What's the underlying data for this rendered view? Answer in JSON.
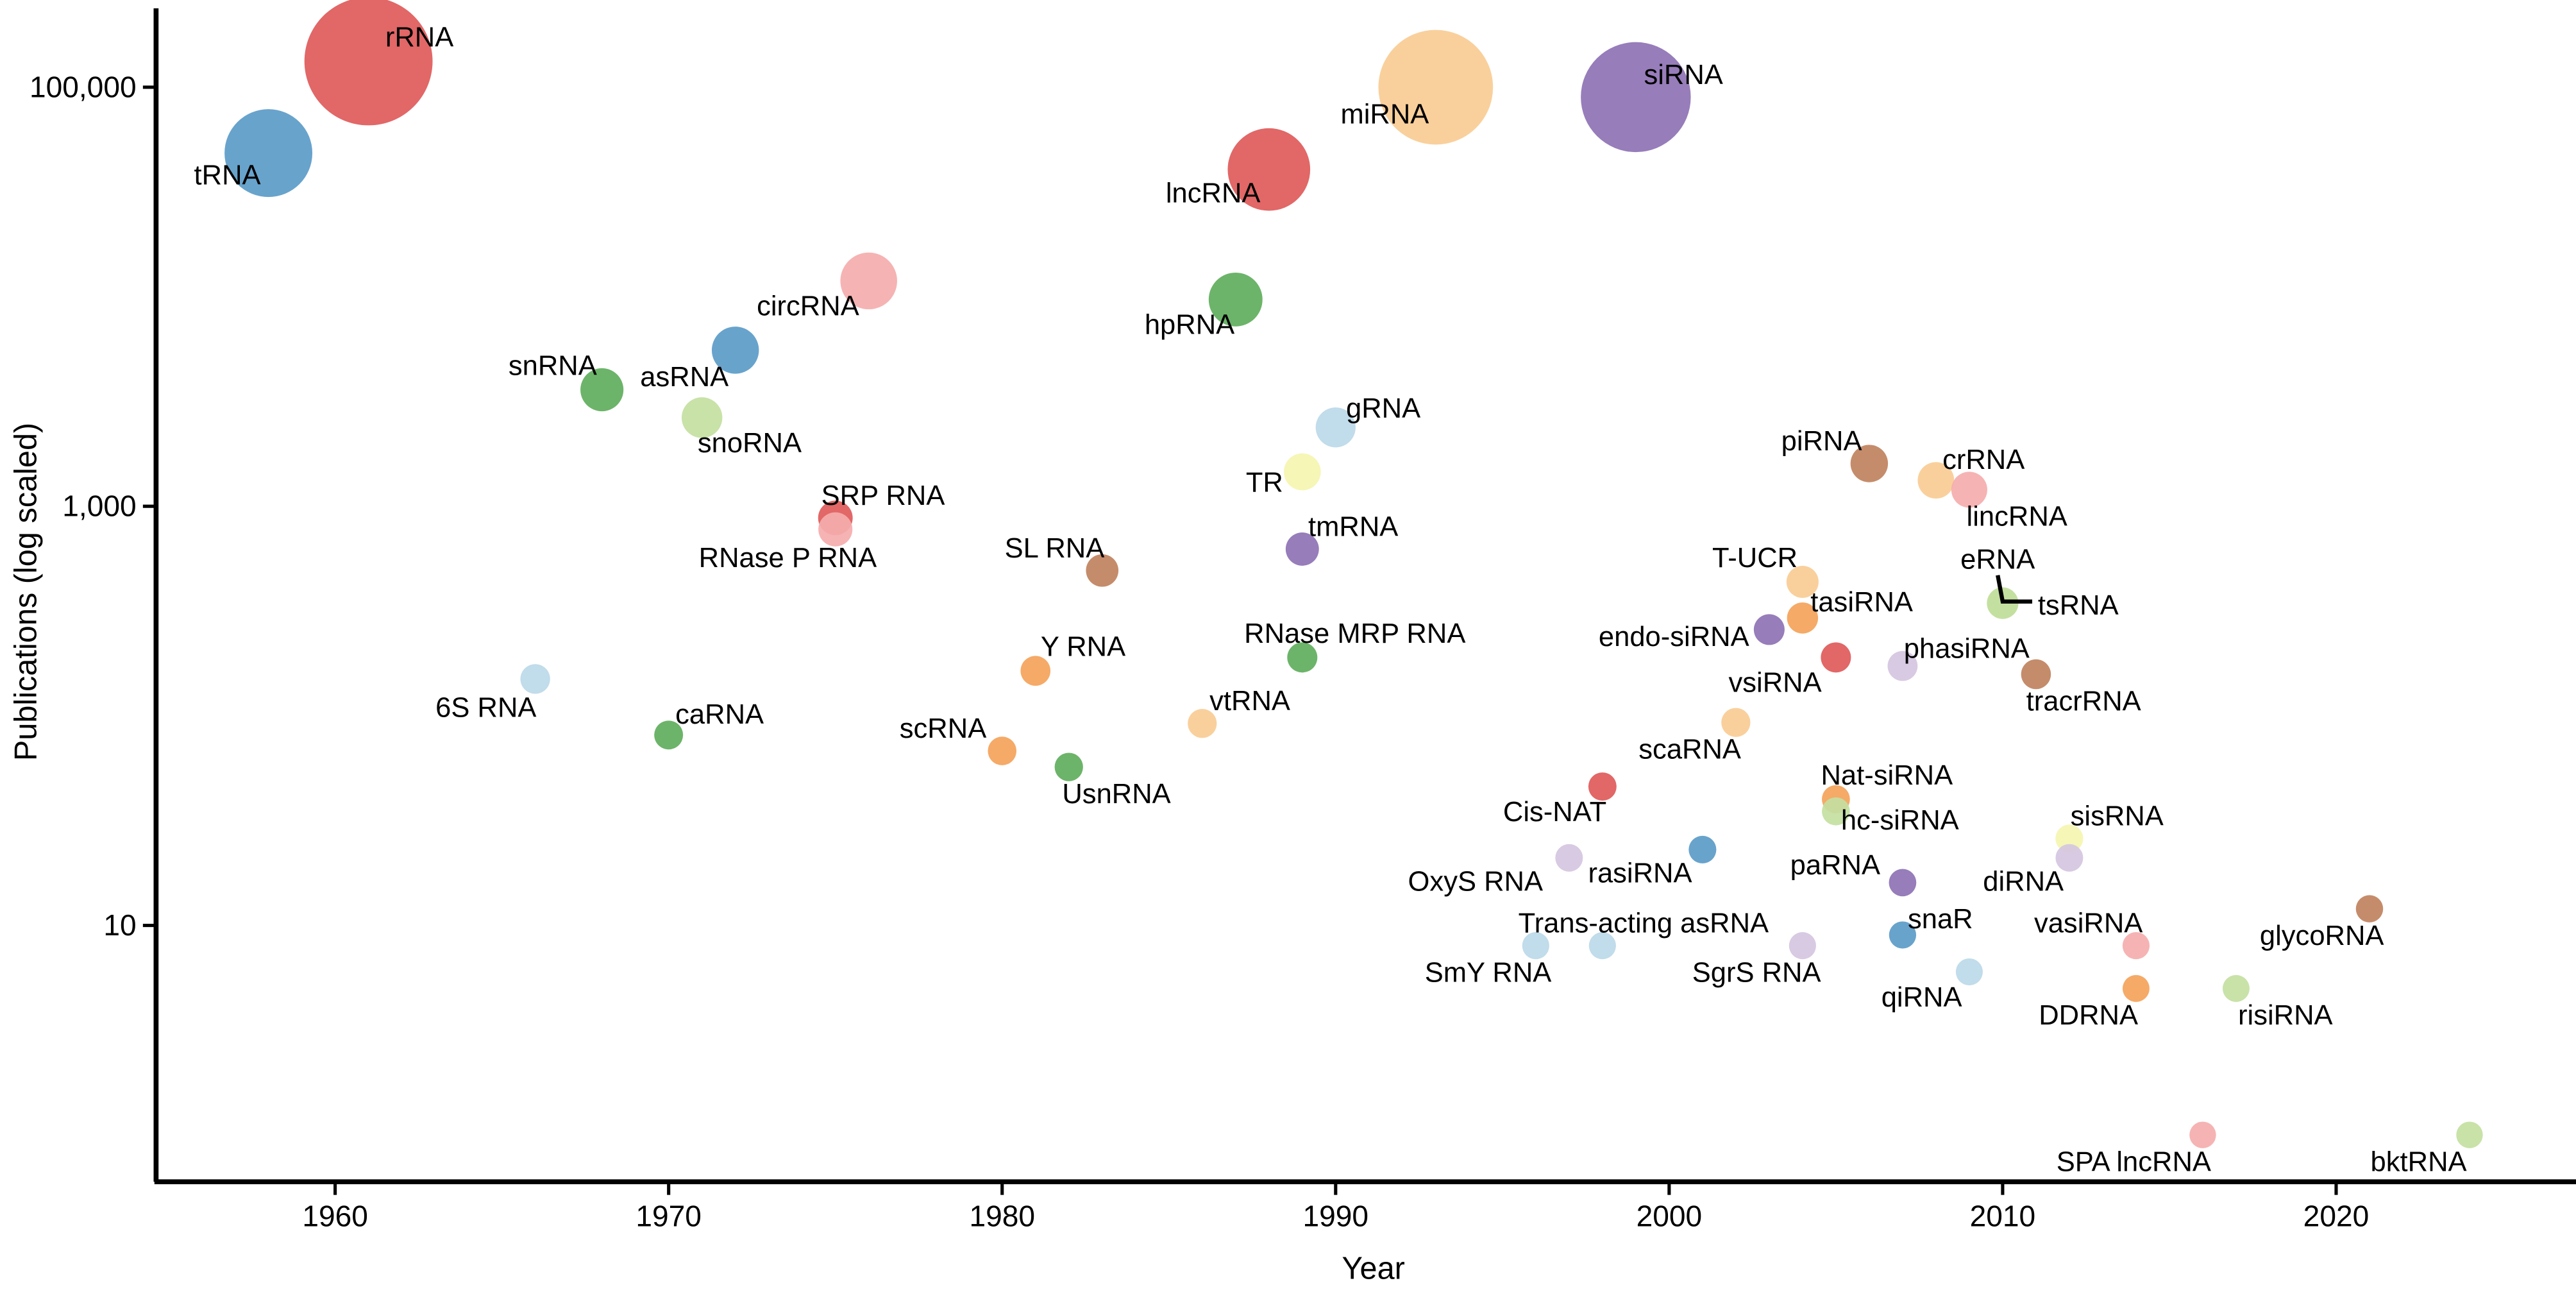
{
  "chart_data": {
    "type": "scatter",
    "title": "",
    "xlabel": "Year",
    "ylabel": "Publications (log scaled)",
    "xlim": [
      1954.6,
      2027.6
    ],
    "ylim": [
      0.6,
      200000
    ],
    "yscale": "log",
    "grid": false,
    "xticks": [
      1960,
      1970,
      1980,
      1990,
      2000,
      2010,
      2020
    ],
    "xtick_labels": [
      "1960",
      "1970",
      "1980",
      "1990",
      "2000",
      "2010",
      "2020"
    ],
    "yticks": [
      10,
      1000,
      100000
    ],
    "ytick_labels": [
      "10",
      "1,000",
      "100,000"
    ],
    "size_encoding": "publications",
    "points": [
      {
        "name": "rRNA",
        "year": 1961,
        "publications": 133000,
        "color": "#e05a5a"
      },
      {
        "name": "miRNA",
        "year": 1993,
        "publications": 100000,
        "color": "#f8cc94"
      },
      {
        "name": "siRNA",
        "year": 1999,
        "publications": 89700,
        "color": "#8e72b4"
      },
      {
        "name": "tRNA",
        "year": 1958,
        "publications": 48500,
        "color": "#5b9bc8"
      },
      {
        "name": "lncRNA",
        "year": 1988,
        "publications": 40500,
        "color": "#e05a5a"
      },
      {
        "name": "circRNA",
        "year": 1976,
        "publications": 11900,
        "color": "#f5adad"
      },
      {
        "name": "hpRNA",
        "year": 1987,
        "publications": 9700,
        "color": "#5fae5c"
      },
      {
        "name": "asRNA",
        "year": 1972,
        "publications": 5560,
        "color": "#5b9bc8"
      },
      {
        "name": "snRNA",
        "year": 1968,
        "publications": 3600,
        "color": "#5fae5c"
      },
      {
        "name": "snoRNA",
        "year": 1971,
        "publications": 2650,
        "color": "#c3e0a1"
      },
      {
        "name": "gRNA",
        "year": 1990,
        "publications": 2380,
        "color": "#bcd9e8"
      },
      {
        "name": "piRNA",
        "year": 2006,
        "publications": 1600,
        "color": "#c0825e"
      },
      {
        "name": "TR",
        "year": 1989,
        "publications": 1460,
        "color": "#f5f5b0"
      },
      {
        "name": "crRNA",
        "year": 2008,
        "publications": 1330,
        "color": "#f8cc94"
      },
      {
        "name": "lincRNA",
        "year": 2009,
        "publications": 1200,
        "color": "#f5adad"
      },
      {
        "name": "SRP RNA",
        "year": 1975,
        "publications": 880,
        "color": "#e05a5a"
      },
      {
        "name": "RNase P RNA",
        "year": 1975,
        "publications": 776,
        "color": "#f5adad"
      },
      {
        "name": "tmRNA",
        "year": 1989,
        "publications": 625,
        "color": "#8e72b4"
      },
      {
        "name": "SL RNA",
        "year": 1983,
        "publications": 494,
        "color": "#c0825e"
      },
      {
        "name": "T-UCR",
        "year": 2004,
        "publications": 436,
        "color": "#f8cc94"
      },
      {
        "name": "eRNA",
        "year": 2010,
        "publications": 345,
        "color": "#c3e0a1"
      },
      {
        "name": "tsRNA",
        "year": 2010,
        "publications": 345,
        "color": "#c3e0a1"
      },
      {
        "name": "tasiRNA",
        "year": 2004,
        "publications": 293,
        "color": "#f4a35a"
      },
      {
        "name": "endo-siRNA",
        "year": 2003,
        "publications": 258,
        "color": "#8e72b4"
      },
      {
        "name": "vsiRNA",
        "year": 2005,
        "publications": 190,
        "color": "#e05a5a"
      },
      {
        "name": "RNase MRP RNA",
        "year": 1989,
        "publications": 190,
        "color": "#5fae5c"
      },
      {
        "name": "phasiRNA",
        "year": 2007,
        "publications": 173,
        "color": "#d5c5e0"
      },
      {
        "name": "Y RNA",
        "year": 1981,
        "publications": 164,
        "color": "#f4a35a"
      },
      {
        "name": "tracrRNA",
        "year": 2011,
        "publications": 158,
        "color": "#c0825e"
      },
      {
        "name": "6S RNA",
        "year": 1966,
        "publications": 150,
        "color": "#bcd9e8"
      },
      {
        "name": "scaRNA",
        "year": 2002,
        "publications": 93,
        "color": "#f8cc94"
      },
      {
        "name": "vtRNA",
        "year": 1986,
        "publications": 92,
        "color": "#f8cc94"
      },
      {
        "name": "caRNA",
        "year": 1970,
        "publications": 81,
        "color": "#5fae5c"
      },
      {
        "name": "scRNA",
        "year": 1980,
        "publications": 68,
        "color": "#f4a35a"
      },
      {
        "name": "UsnRNA",
        "year": 1982,
        "publications": 57,
        "color": "#5fae5c"
      },
      {
        "name": "Cis-NAT",
        "year": 1998,
        "publications": 46,
        "color": "#e05a5a"
      },
      {
        "name": "Nat-siRNA",
        "year": 2005,
        "publications": 40,
        "color": "#f4a35a"
      },
      {
        "name": "hc-siRNA",
        "year": 2005,
        "publications": 35,
        "color": "#c3e0a1"
      },
      {
        "name": "sisRNA",
        "year": 2012,
        "publications": 26,
        "color": "#f5f5b0"
      },
      {
        "name": "rasiRNA",
        "year": 2001,
        "publications": 23,
        "color": "#5b9bc8"
      },
      {
        "name": "diRNA",
        "year": 2012,
        "publications": 21,
        "color": "#d5c5e0"
      },
      {
        "name": "OxyS RNA",
        "year": 1997,
        "publications": 21,
        "color": "#d5c5e0"
      },
      {
        "name": "paRNA",
        "year": 2007,
        "publications": 16,
        "color": "#8e72b4"
      },
      {
        "name": "glycoRNA",
        "year": 2021,
        "publications": 12,
        "color": "#c0825e"
      },
      {
        "name": "snaR",
        "year": 2007,
        "publications": 9,
        "color": "#5b9bc8"
      },
      {
        "name": "SmY RNA",
        "year": 1996,
        "publications": 8,
        "color": "#bcd9e8"
      },
      {
        "name": "Trans-acting asRNA",
        "year": 1998,
        "publications": 8,
        "color": "#bcd9e8"
      },
      {
        "name": "SgrS RNA",
        "year": 2004,
        "publications": 8,
        "color": "#d5c5e0"
      },
      {
        "name": "vasiRNA",
        "year": 2014,
        "publications": 8,
        "color": "#f5adad"
      },
      {
        "name": "qiRNA",
        "year": 2009,
        "publications": 6,
        "color": "#bcd9e8"
      },
      {
        "name": "DDRNA",
        "year": 2014,
        "publications": 5,
        "color": "#f4a35a"
      },
      {
        "name": "risiRNA",
        "year": 2017,
        "publications": 5,
        "color": "#c3e0a1"
      },
      {
        "name": "SPA lncRNA",
        "year": 2016,
        "publications": 1,
        "color": "#f5adad"
      },
      {
        "name": "bktRNA",
        "year": 2024,
        "publications": 1,
        "color": "#c3e0a1"
      }
    ]
  }
}
